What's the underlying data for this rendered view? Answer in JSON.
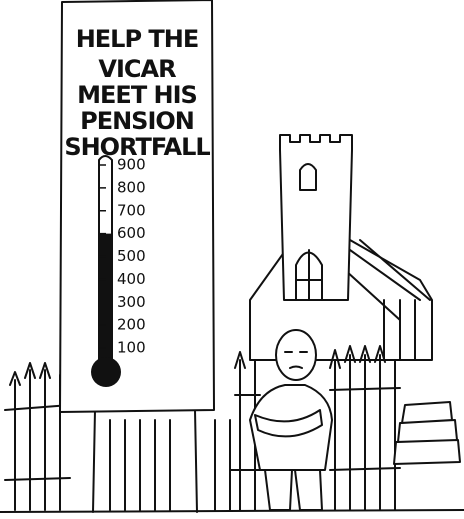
{
  "sign": {
    "lines": [
      "HELP THE",
      "VICAR",
      "MEET HIS",
      "PENSION",
      "SHORTFALL"
    ]
  },
  "thermometer": {
    "ticks": [
      900,
      800,
      700,
      600,
      500,
      400,
      300,
      200,
      100
    ],
    "level": 600
  }
}
